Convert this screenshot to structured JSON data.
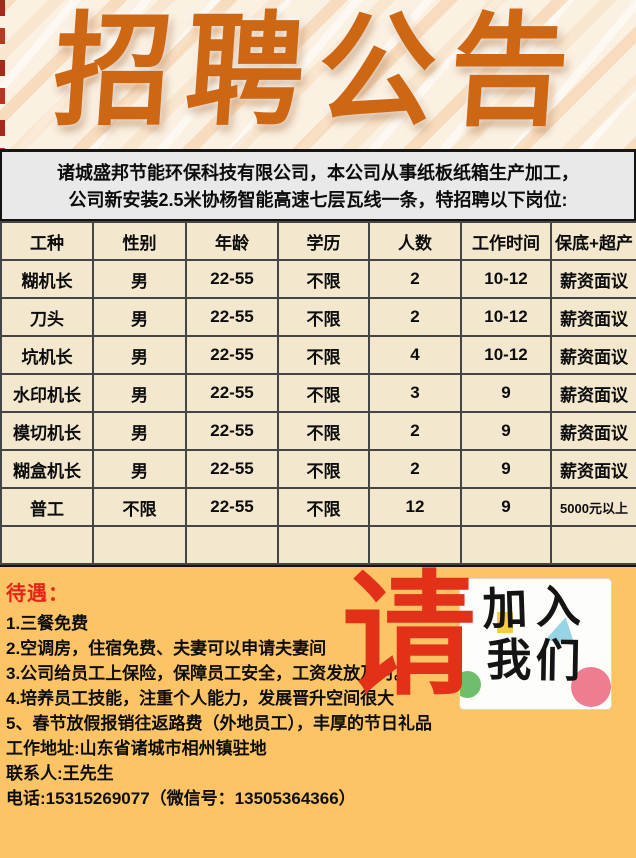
{
  "banner": {
    "title": "招聘公告"
  },
  "intro": {
    "line1": "诸城盛邦节能环保科技有限公司，本公司从事纸板纸箱生产加工，",
    "line2": "公司新安装2.5米协杨智能高速七层瓦线一条，特招聘以下岗位:"
  },
  "table": {
    "headers": [
      "工种",
      "性别",
      "年龄",
      "学历",
      "人数",
      "工作时间",
      "保底+超产"
    ],
    "rows": [
      [
        "糊机长",
        "男",
        "22-55",
        "不限",
        "2",
        "10-12",
        "薪资面议"
      ],
      [
        "刀头",
        "男",
        "22-55",
        "不限",
        "2",
        "10-12",
        "薪资面议"
      ],
      [
        "坑机长",
        "男",
        "22-55",
        "不限",
        "4",
        "10-12",
        "薪资面议"
      ],
      [
        "水印机长",
        "男",
        "22-55",
        "不限",
        "3",
        "9",
        "薪资面议"
      ],
      [
        "模切机长",
        "男",
        "22-55",
        "不限",
        "2",
        "9",
        "薪资面议"
      ],
      [
        "糊盒机长",
        "男",
        "22-55",
        "不限",
        "2",
        "9",
        "薪资面议"
      ],
      [
        "普工",
        "不限",
        "22-55",
        "不限",
        "12",
        "9",
        "5000元以上"
      ],
      [
        "",
        "",
        "",
        "",
        "",
        "",
        ""
      ]
    ]
  },
  "benefits": {
    "heading": "待遇：",
    "lines": [
      "1.三餐免费",
      "2.空调房，住宿免费、夫妻可以申请夫妻间",
      "3.公司给员工上保险，保障员工安全，工资发放及时。",
      "4.培养员工技能，注重个人能力，发展晋升空间很大",
      "5、春节放假报销往返路费（外地员工），丰厚的节日礼品",
      "工作地址:山东省诸城市相州镇驻地",
      "联系人:王先生",
      "电话:15315269077（微信号：13505364366）"
    ]
  },
  "overlay": {
    "please": "请",
    "join_line1": "加入",
    "join_line2": "我们"
  },
  "colors": {
    "banner_bg": "#fbf1e2",
    "title_orange": "#cd6714",
    "intro_bg": "#e9e9e9",
    "table_bg": "#f3e8ce",
    "section_orange": "#fcc464",
    "accent_red": "#e33018",
    "join_green": "#6fbe6b",
    "join_pink": "#ee7d92",
    "join_blue": "#96d4e6",
    "join_yellow": "#f4cd3e"
  }
}
